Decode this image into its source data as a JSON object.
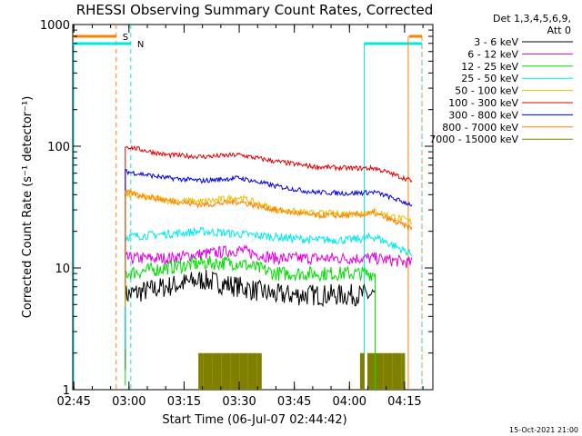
{
  "chart_data": {
    "type": "line",
    "title": "RHESSI Observing Summary Count Rates, Corrected",
    "xlabel": "Start Time (06-Jul-07 02:44:42)",
    "ylabel": "Corrected Count Rate (s⁻¹ detector⁻¹)",
    "yscale": "log",
    "ylim": [
      1,
      1000
    ],
    "xlim_minutes": [
      0,
      98
    ],
    "x_ticks": [
      "02:45",
      "03:00",
      "03:15",
      "03:30",
      "03:45",
      "04:00",
      "04:15"
    ],
    "y_ticks": [
      "1",
      "10",
      "100",
      "1000"
    ],
    "footer": "15-Oct-2021 21:00",
    "legend_header": [
      "Det 1,3,4,5,6,9,",
      "Att 0"
    ],
    "series": [
      {
        "name": "3 - 6 keV",
        "color": "#000000",
        "x": [
          "02:59",
          "03:10",
          "03:20",
          "03:30",
          "03:40",
          "03:50",
          "04:00",
          "04:07"
        ],
        "y": [
          6,
          7,
          8,
          7,
          6,
          6,
          6,
          6
        ]
      },
      {
        "name": "6 - 12 keV",
        "color": "#e000e0",
        "x": [
          "02:59",
          "03:10",
          "03:20",
          "03:30",
          "03:40",
          "03:50",
          "04:00",
          "04:07",
          "04:17"
        ],
        "y": [
          12,
          12,
          13,
          14,
          12,
          12,
          12,
          12,
          11
        ]
      },
      {
        "name": "12 - 25 keV",
        "color": "#00dd00",
        "x": [
          "02:59",
          "03:10",
          "03:20",
          "03:30",
          "03:40",
          "03:50",
          "04:00",
          "04:07"
        ],
        "y": [
          9,
          10,
          11,
          11,
          9,
          9,
          9,
          9
        ]
      },
      {
        "name": "25 - 50 keV",
        "color": "#00e8e8",
        "x": [
          "02:59",
          "03:10",
          "03:20",
          "03:30",
          "03:40",
          "03:50",
          "04:00",
          "04:07",
          "04:17"
        ],
        "y": [
          18,
          19,
          20,
          19,
          18,
          17,
          17,
          18,
          13
        ]
      },
      {
        "name": "50 - 100 keV",
        "color": "#e8c000",
        "x": [
          "02:59",
          "03:10",
          "03:20",
          "03:30",
          "03:40",
          "03:50",
          "04:00",
          "04:07",
          "04:17"
        ],
        "y": [
          40,
          36,
          35,
          38,
          30,
          28,
          28,
          29,
          24
        ]
      },
      {
        "name": "100 - 300 keV",
        "color": "#e00000",
        "x": [
          "02:59",
          "03:10",
          "03:20",
          "03:30",
          "03:40",
          "03:50",
          "04:00",
          "04:07",
          "04:17"
        ],
        "y": [
          100,
          85,
          82,
          85,
          75,
          68,
          66,
          66,
          52
        ]
      },
      {
        "name": "300 - 800 keV",
        "color": "#0000e0",
        "x": [
          "02:59",
          "03:10",
          "03:20",
          "03:30",
          "03:40",
          "03:50",
          "04:00",
          "04:07",
          "04:17"
        ],
        "y": [
          62,
          55,
          52,
          55,
          47,
          42,
          41,
          42,
          33
        ]
      },
      {
        "name": "800 - 7000 keV",
        "color": "#ff8000",
        "x": [
          "02:59",
          "03:10",
          "03:20",
          "03:30",
          "03:40",
          "03:50",
          "04:00",
          "04:07",
          "04:17"
        ],
        "y": [
          42,
          36,
          33,
          35,
          30,
          27,
          27,
          28,
          21
        ]
      },
      {
        "name": "7000 - 15000 keV",
        "color": "#808000",
        "x": [
          "03:20",
          "03:30",
          "03:40",
          "04:03",
          "04:06",
          "04:17"
        ],
        "y": [
          2,
          2,
          2,
          2,
          2,
          2
        ]
      }
    ],
    "markers": [
      {
        "label": "S",
        "color": "#ff8000"
      },
      {
        "label": "N",
        "color": "#00e8e8"
      }
    ]
  }
}
